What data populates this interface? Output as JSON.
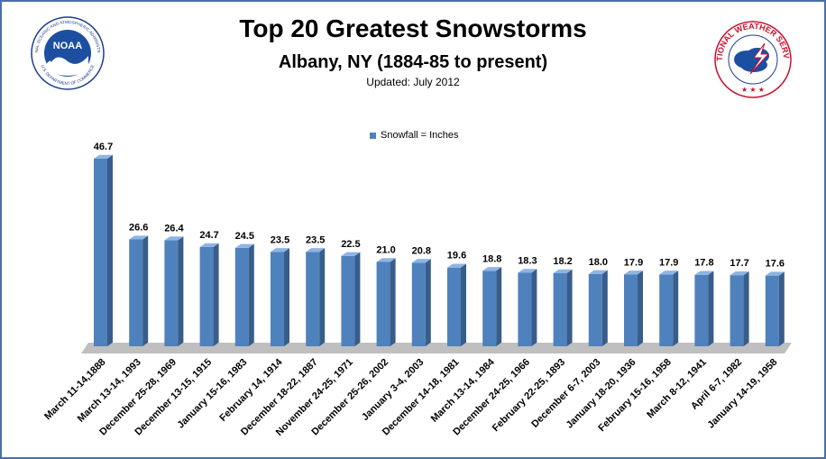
{
  "header": {
    "title": "Top 20 Greatest Snowstorms",
    "subtitle": "Albany, NY (1884-85 to present)",
    "updated": "Updated: July 2012"
  },
  "logos": {
    "noaa": {
      "center_text": "NOAA",
      "ring_text_top": "NATIONAL OCEANIC AND ATMOSPHERIC ADMINISTRATION",
      "ring_text_bottom": "U.S. DEPARTMENT OF COMMERCE"
    },
    "nws": {
      "ring_text": "NATIONAL WEATHER SERVICE"
    }
  },
  "colors": {
    "bar_front": "#4f81bd",
    "bar_side": "#385d8a",
    "bar_top": "#8eb4e3",
    "floor": "#bfbfbf",
    "frame": "#4a6fa8"
  },
  "chart_data": {
    "type": "bar",
    "title": "",
    "xlabel": "",
    "ylabel": "",
    "ylim": [
      0,
      50
    ],
    "grid": false,
    "legend": {
      "placement": "top-center",
      "entries": [
        "Snowfall = Inches"
      ]
    },
    "categories": [
      "March 11-14,1888",
      "March 13-14, 1993",
      "December 25-28, 1969",
      "December 13-15, 1915",
      "January 15-16, 1983",
      "February 14, 1914",
      "December 18-22, 1887",
      "November 24-25, 1971",
      "December 25-26, 2002",
      "January 3-4, 2003",
      "December 14-18, 1981",
      "March 13-14, 1984",
      "December 24-25, 1966",
      "February 22-25, 1893",
      "December 6-7, 2003",
      "January 18-20, 1936",
      "February 15-16, 1958",
      "March 8-12, 1941",
      "April 6-7, 1982",
      "January 14-19, 1958"
    ],
    "series": [
      {
        "name": "Snowfall = Inches",
        "values": [
          46.7,
          26.6,
          26.4,
          24.7,
          24.5,
          23.5,
          23.5,
          22.5,
          21.0,
          20.8,
          19.6,
          18.8,
          18.3,
          18.2,
          18.0,
          17.9,
          17.9,
          17.8,
          17.7,
          17.6
        ],
        "labels": [
          "46.7",
          "26.6",
          "26.4",
          "24.7",
          "24.5",
          "23.5",
          "23.5",
          "22.5",
          "21.0",
          "20.8",
          "19.6",
          "18.8",
          "18.3",
          "18.2",
          "18.0",
          "17.9",
          "17.9",
          "17.8",
          "17.7",
          "17.6"
        ]
      }
    ]
  }
}
